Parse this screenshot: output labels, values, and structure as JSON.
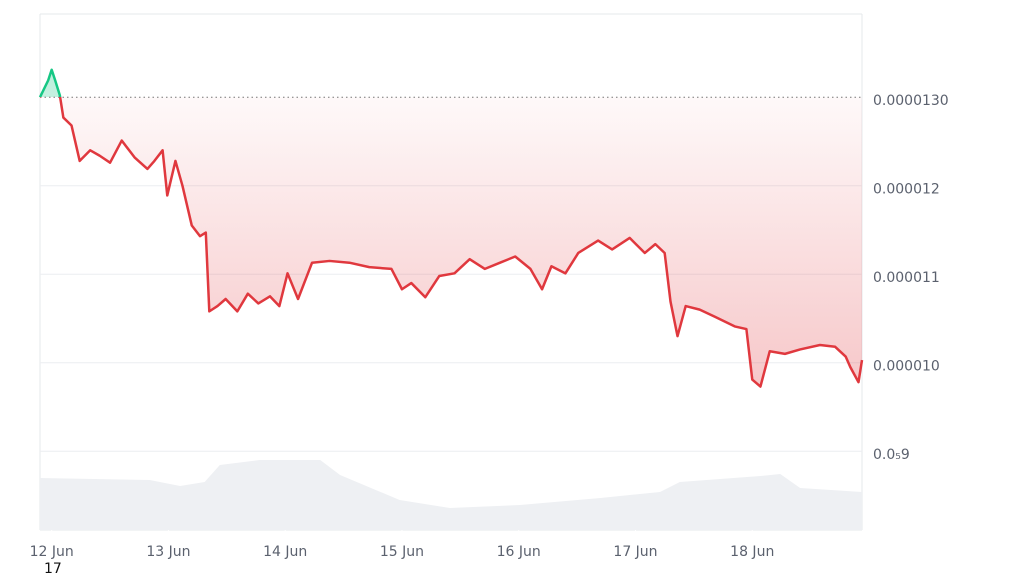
{
  "chart_data": {
    "type": "line",
    "footnote": "17",
    "xlim": [
      11.9,
      18.94
    ],
    "xticks": [
      {
        "value": 12,
        "label": "12 Jun"
      },
      {
        "value": 13,
        "label": "13 Jun"
      },
      {
        "value": 14,
        "label": "14 Jun"
      },
      {
        "value": 15,
        "label": "15 Jun"
      },
      {
        "value": 16,
        "label": "16 Jun"
      },
      {
        "value": 17,
        "label": "17 Jun"
      },
      {
        "value": 18,
        "label": "18 Jun"
      }
    ],
    "ylim": [
      8.11e-06,
      1.394e-05
    ],
    "yticks": [
      {
        "value": 1.3e-05,
        "label": "0.0000130"
      },
      1.2e-05,
      1.1e-05,
      {
        "value": 1e-05,
        "label": "0.000010"
      },
      {
        "value": 9e-06,
        "label": "0.0₅9"
      }
    ],
    "grid": true,
    "series": [
      {
        "color": "#e0383e",
        "up_color": "#16c784",
        "x": [
          11.9,
          11.97,
          12.0,
          12.03,
          12.07,
          12.1,
          12.17,
          12.24,
          12.33,
          12.41,
          12.5,
          12.6,
          12.71,
          12.82,
          12.88,
          12.95,
          12.99,
          13.06,
          13.12,
          13.2,
          13.27,
          13.32,
          13.35,
          13.42,
          13.49,
          13.59,
          13.68,
          13.77,
          13.87,
          13.95,
          14.02,
          14.11,
          14.23,
          14.38,
          14.55,
          14.72,
          14.91,
          15.0,
          15.08,
          15.2,
          15.32,
          15.45,
          15.58,
          15.71,
          15.84,
          15.97,
          16.1,
          16.2,
          16.28,
          16.4,
          16.51,
          16.68,
          16.8,
          16.95,
          17.08,
          17.17,
          17.25,
          17.3,
          17.36,
          17.43,
          17.55,
          17.68,
          17.85,
          17.95,
          18.0,
          18.07,
          18.15,
          18.28,
          18.41,
          18.58,
          18.71,
          18.8,
          18.84,
          18.91,
          18.94
        ],
        "values": [
          1.3e-05,
          1.319e-05,
          1.331e-05,
          1.319e-05,
          1.302e-05,
          1.277e-05,
          1.268e-05,
          1.228e-05,
          1.24e-05,
          1.234e-05,
          1.226e-05,
          1.251e-05,
          1.232e-05,
          1.219e-05,
          1.228e-05,
          1.24e-05,
          1.189e-05,
          1.228e-05,
          1.2e-05,
          1.155e-05,
          1.143e-05,
          1.147e-05,
          1.058e-05,
          1.064e-05,
          1.072e-05,
          1.058e-05,
          1.078e-05,
          1.067e-05,
          1.075e-05,
          1.064e-05,
          1.101e-05,
          1.072e-05,
          1.113e-05,
          1.115e-05,
          1.113e-05,
          1.108e-05,
          1.106e-05,
          1.083e-05,
          1.09e-05,
          1.074e-05,
          1.098e-05,
          1.101e-05,
          1.117e-05,
          1.106e-05,
          1.113e-05,
          1.12e-05,
          1.106e-05,
          1.083e-05,
          1.109e-05,
          1.101e-05,
          1.124e-05,
          1.138e-05,
          1.128e-05,
          1.141e-05,
          1.124e-05,
          1.134e-05,
          1.124e-05,
          1.069e-05,
          1.03e-05,
          1.064e-05,
          1.06e-05,
          1.052e-05,
          1.041e-05,
          1.038e-05,
          9.81e-06,
          9.73e-06,
          1.013e-05,
          1.01e-05,
          1.015e-05,
          1.02e-05,
          1.018e-05,
          1.007e-05,
          9.95e-06,
          9.78e-06,
          1.003e-05
        ]
      },
      {
        "type": "area",
        "axis": "y2",
        "color": "#eef0f3",
        "x": [
          11.9,
          12.84,
          13.1,
          13.31,
          13.44,
          13.78,
          14.3,
          14.47,
          14.98,
          15.41,
          16.01,
          16.7,
          17.21,
          17.38,
          18.07,
          18.24,
          18.41,
          18.94
        ],
        "values": [
          52,
          50,
          44,
          48,
          65,
          70,
          70,
          55,
          30,
          22,
          25,
          32,
          38,
          48,
          54,
          56,
          42,
          38
        ]
      }
    ],
    "y2lim": [
      0,
      100
    ]
  }
}
